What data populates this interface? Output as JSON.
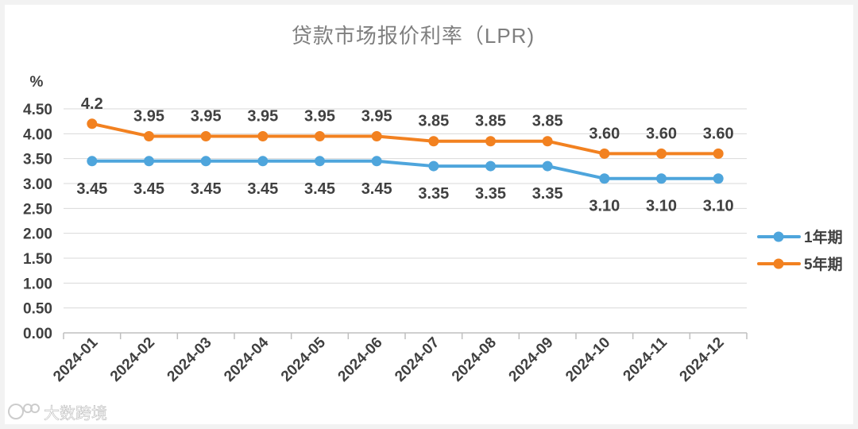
{
  "chart_data": {
    "type": "line",
    "title": "贷款市场报价利率（LPR)",
    "ylabel": "%",
    "xlabel": "",
    "ylim": [
      0,
      4.5
    ],
    "yticks": [
      "0.00",
      "0.50",
      "1.00",
      "1.50",
      "2.00",
      "2.50",
      "3.00",
      "3.50",
      "4.00",
      "4.50"
    ],
    "categories": [
      "2024-01",
      "2024-02",
      "2024-03",
      "2024-04",
      "2024-05",
      "2024-06",
      "2024-07",
      "2024-08",
      "2024-09",
      "2024-10",
      "2024-11",
      "2024-12"
    ],
    "grid": true,
    "legend_position": "right",
    "series": [
      {
        "name": "1年期",
        "color": "#4ea5dc",
        "values": [
          3.45,
          3.45,
          3.45,
          3.45,
          3.45,
          3.45,
          3.35,
          3.35,
          3.35,
          3.1,
          3.1,
          3.1
        ],
        "labels": [
          "3.45",
          "3.45",
          "3.45",
          "3.45",
          "3.45",
          "3.45",
          "3.35",
          "3.35",
          "3.35",
          "3.10",
          "3.10",
          "3.10"
        ],
        "label_side": "below"
      },
      {
        "name": "5年期",
        "color": "#f28120",
        "values": [
          4.2,
          3.95,
          3.95,
          3.95,
          3.95,
          3.95,
          3.85,
          3.85,
          3.85,
          3.6,
          3.6,
          3.6
        ],
        "labels": [
          "4.2",
          "3.95",
          "3.95",
          "3.95",
          "3.95",
          "3.95",
          "3.85",
          "3.85",
          "3.85",
          "3.60",
          "3.60",
          "3.60"
        ],
        "label_side": "above"
      }
    ]
  },
  "watermark": {
    "text": "大数跨境",
    "icon": "logo-icon"
  }
}
